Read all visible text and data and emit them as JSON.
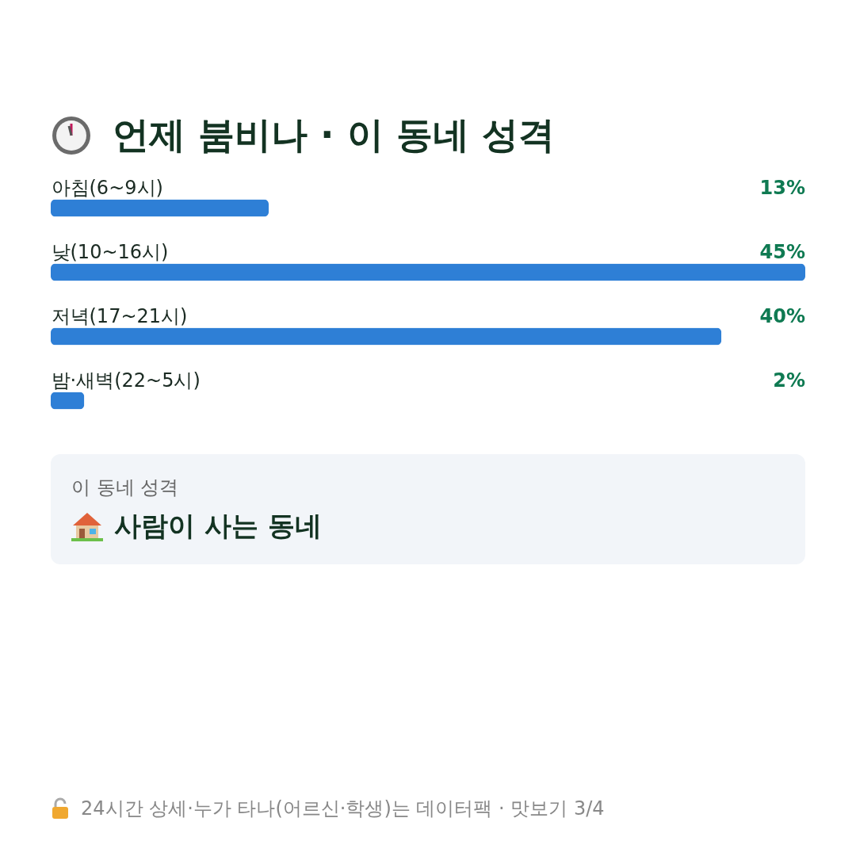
{
  "chart_data": {
    "type": "bar",
    "orientation": "horizontal",
    "title": "언제 붐비나 · 이 동네 성격",
    "categories": [
      "아침(6~9시)",
      "낮(10~16시)",
      "저녁(17~21시)",
      "밤·새벽(22~5시)"
    ],
    "values": [
      13,
      45,
      40,
      2
    ],
    "value_labels": [
      "13%",
      "45%",
      "40%",
      "2%"
    ],
    "color": "#2e7fd6",
    "annotations": [
      "이 동네 성격",
      "사람이 사는 동네",
      "24시간 상세·누가 타나(어르신·학생)는 데이터팩 · 맛보기 3/4"
    ]
  }
}
